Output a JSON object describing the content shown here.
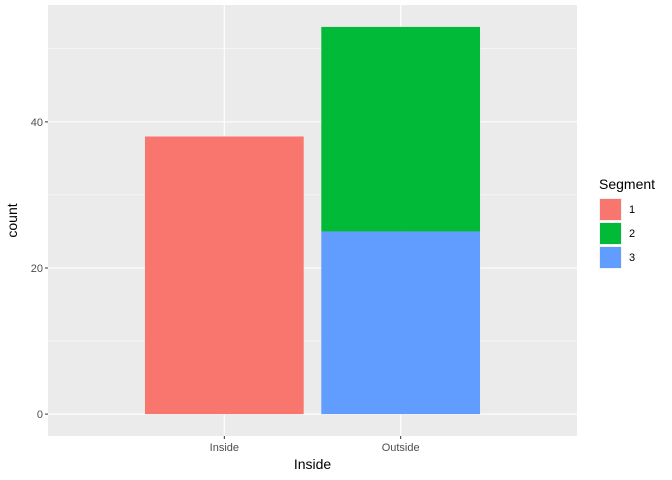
{
  "chart_data": {
    "type": "bar",
    "stacked": true,
    "xlabel": "Inside",
    "ylabel": "count",
    "categories": [
      "Inside",
      "Outside"
    ],
    "series": [
      {
        "name": "1",
        "color": "#F8766D",
        "values": [
          38,
          0
        ]
      },
      {
        "name": "2",
        "color": "#00BA38",
        "values": [
          0,
          28
        ]
      },
      {
        "name": "3",
        "color": "#619CFF",
        "values": [
          0,
          25
        ]
      }
    ],
    "ylim": [
      -3,
      56
    ],
    "yticks": [
      0,
      20,
      40
    ],
    "grid": true,
    "legend": {
      "title": "Segment",
      "position": "right"
    },
    "panel_background": "#EBEBEB"
  }
}
